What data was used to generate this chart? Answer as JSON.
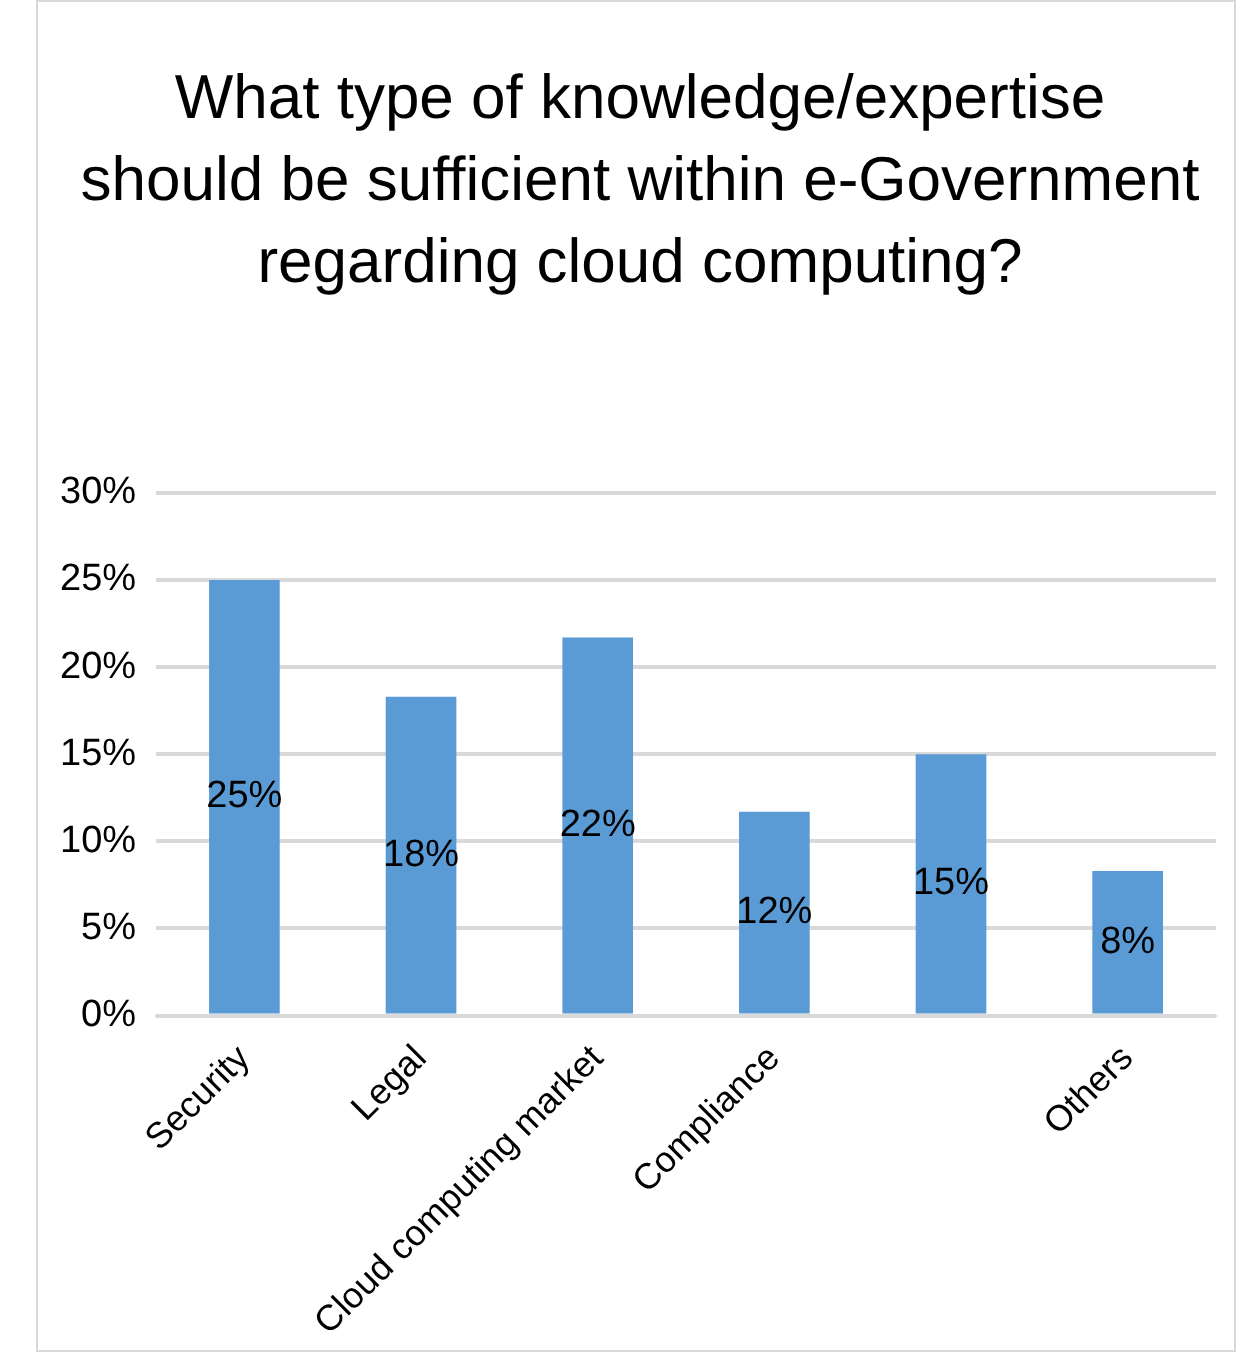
{
  "chart_data": {
    "type": "bar",
    "title": "What type of knowledge/expertise should be sufficient within e-Government regarding cloud computing?",
    "categories": [
      "Security",
      "Legal",
      "Cloud computing market",
      "Compliance",
      null,
      "Others"
    ],
    "values": [
      25,
      18.3,
      21.7,
      11.7,
      15,
      8.3
    ],
    "value_labels": [
      "25%",
      "18%",
      "22%",
      "12%",
      "15%",
      "8%"
    ],
    "color": "#5b9bd5",
    "ylim": [
      0,
      30
    ],
    "yticks": [
      {
        "value": 0,
        "label": "0%"
      },
      {
        "value": 5,
        "label": "5%"
      },
      {
        "value": 10,
        "label": "10%"
      },
      {
        "value": 15,
        "label": "15%"
      },
      {
        "value": 20,
        "label": "20%"
      },
      {
        "value": 25,
        "label": "25%"
      },
      {
        "value": 30,
        "label": "30%"
      }
    ],
    "grid": "y",
    "legend": false
  }
}
